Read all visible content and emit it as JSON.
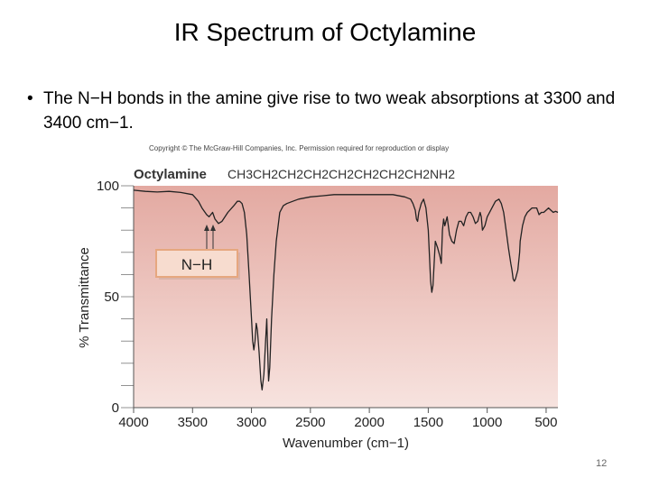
{
  "slide": {
    "title": "IR Spectrum of Octylamine",
    "bullet_symbol": "•",
    "bullet": "The N−H bonds in the amine give rise to two weak absorptions at 3300 and 3400 cm−1.",
    "copyright": "Copyright © The McGraw-Hill Companies, Inc. Permission required for reproduction or display",
    "page_number": "12"
  },
  "colors": {
    "band_top": "#e3a9a1",
    "band_bottom": "#f7e3df",
    "trace": "#222222",
    "annotation_box": "#f7dccf",
    "annotation_border": "#e6a77f"
  },
  "chart_data": {
    "type": "line",
    "compound_name": "Octylamine",
    "formula": "CH3CH2CH2CH2CH2CH2CH2CH2NH2",
    "xlabel": "Wavenumber (cm−1)",
    "ylabel": "% Transmittance",
    "xlim": [
      4000,
      400
    ],
    "ylim": [
      0,
      100
    ],
    "x_ticks": [
      4000,
      3500,
      3000,
      2500,
      2000,
      1500,
      1000,
      500
    ],
    "y_ticks": [
      0,
      50,
      100
    ],
    "annotation": "N−H",
    "series": [
      {
        "x": [
          4000,
          3900,
          3800,
          3700,
          3600,
          3500,
          3450,
          3420,
          3380,
          3360,
          3330,
          3310,
          3280,
          3250,
          3200,
          3150,
          3120,
          3100,
          3080,
          3060,
          3040,
          3020,
          3000,
          2990,
          2980,
          2970,
          2960,
          2950,
          2935,
          2920,
          2910,
          2895,
          2880,
          2870,
          2855,
          2845,
          2830,
          2810,
          2790,
          2760,
          2730,
          2700,
          2650,
          2600,
          2500,
          2400,
          2300,
          2200,
          2100,
          2000,
          1900,
          1800,
          1700,
          1650,
          1630,
          1610,
          1600,
          1590,
          1580,
          1560,
          1540,
          1520,
          1500,
          1480,
          1470,
          1460,
          1450,
          1440,
          1420,
          1400,
          1390,
          1380,
          1370,
          1360,
          1340,
          1320,
          1300,
          1280,
          1260,
          1240,
          1220,
          1200,
          1180,
          1160,
          1140,
          1120,
          1100,
          1080,
          1060,
          1050,
          1040,
          1020,
          1000,
          960,
          930,
          900,
          880,
          860,
          840,
          820,
          800,
          790,
          780,
          770,
          760,
          740,
          725,
          720,
          700,
          680,
          660,
          620,
          600,
          580,
          560,
          540,
          520,
          500,
          480,
          460,
          440,
          420,
          400
        ],
        "y": [
          98,
          97.5,
          97.2,
          97.5,
          97,
          96,
          93,
          90,
          87,
          86,
          88,
          85,
          83,
          84,
          88,
          91,
          93,
          93,
          92,
          88,
          78,
          60,
          40,
          30,
          26,
          30,
          38,
          35,
          25,
          12,
          8,
          15,
          30,
          40,
          12,
          18,
          40,
          60,
          75,
          88,
          91,
          92,
          93,
          94,
          95,
          95.5,
          96,
          96,
          96,
          96,
          96,
          96,
          95,
          94,
          92,
          89,
          85,
          84,
          88,
          92,
          94,
          90,
          80,
          57,
          52,
          55,
          65,
          75,
          72,
          68,
          65,
          80,
          85,
          82,
          86,
          78,
          75,
          74,
          80,
          84,
          84,
          82,
          86,
          88,
          88,
          86,
          83,
          84,
          88,
          86,
          80,
          82,
          86,
          90,
          93,
          94,
          92,
          88,
          80,
          72,
          65,
          62,
          58,
          57,
          58,
          62,
          70,
          75,
          82,
          86,
          88,
          90,
          90,
          90,
          87,
          88,
          88,
          89,
          90,
          89,
          88,
          88.5,
          88
        ]
      }
    ]
  }
}
